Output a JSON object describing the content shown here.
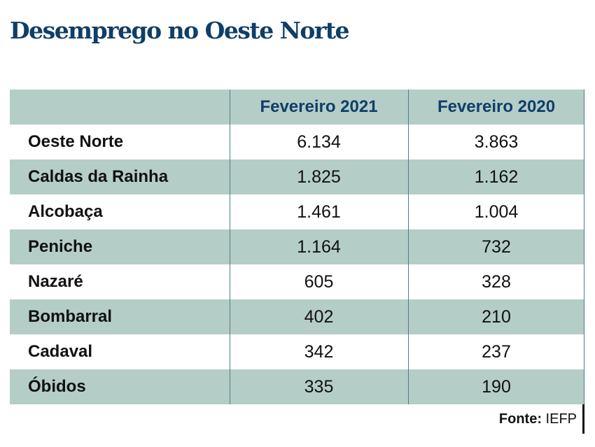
{
  "title": "Desemprego no Oeste Norte",
  "source": {
    "label": "Fonte:",
    "value": "IEFP"
  },
  "colors": {
    "title": "#0f3e68",
    "shade": "#b5cdc7",
    "divider": "#4d7d8c"
  },
  "chart_data": {
    "type": "table",
    "columns": [
      "",
      "Fevereiro 2021",
      "Fevereiro 2020"
    ],
    "rows": [
      [
        "Oeste Norte",
        "6.134",
        "3.863"
      ],
      [
        "Caldas da Rainha",
        "1.825",
        "1.162"
      ],
      [
        "Alcobaça",
        "1.461",
        "1.004"
      ],
      [
        "Peniche",
        "1.164",
        "732"
      ],
      [
        "Nazaré",
        "605",
        "328"
      ],
      [
        "Bombarral",
        "402",
        "210"
      ],
      [
        "Cadaval",
        "342",
        "237"
      ],
      [
        "Óbidos",
        "335",
        "190"
      ]
    ]
  }
}
